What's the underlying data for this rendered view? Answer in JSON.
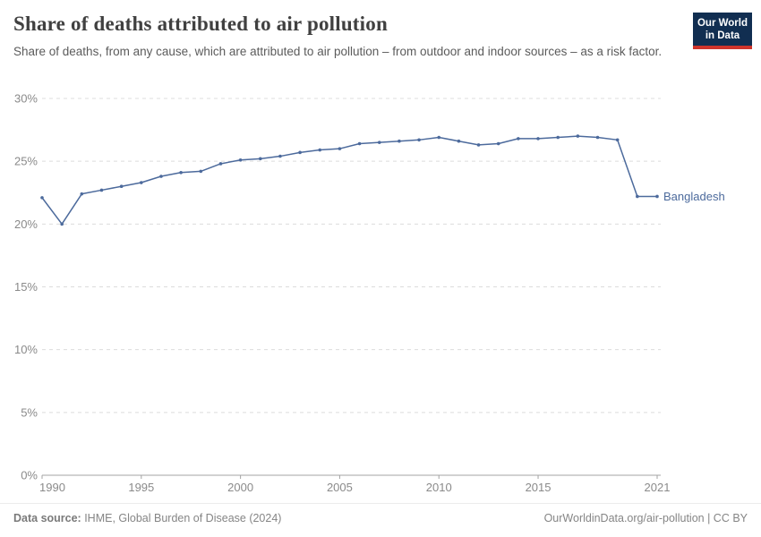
{
  "header": {
    "logo": {
      "line1": "Our World",
      "line2": "in Data"
    }
  },
  "chart_data": {
    "type": "line",
    "title": "Share of deaths attributed to air pollution",
    "subtitle": "Share of deaths, from any cause, which are attributed to air pollution – from outdoor and indoor sources – as a risk factor.",
    "xlabel": "",
    "ylabel": "",
    "xlim": [
      1990,
      2021
    ],
    "ylim": [
      0,
      30
    ],
    "x_ticks": [
      1990,
      1995,
      2000,
      2005,
      2010,
      2015,
      2021
    ],
    "y_ticks": [
      0,
      5,
      10,
      15,
      20,
      25,
      30
    ],
    "y_tick_suffix": "%",
    "grid": "horizontal-dashed",
    "legend_position": "end-of-line-label",
    "series": [
      {
        "name": "Bangladesh",
        "color": "#4c6a9c",
        "x": [
          1990,
          1991,
          1992,
          1993,
          1994,
          1995,
          1996,
          1997,
          1998,
          1999,
          2000,
          2001,
          2002,
          2003,
          2004,
          2005,
          2006,
          2007,
          2008,
          2009,
          2010,
          2011,
          2012,
          2013,
          2014,
          2015,
          2016,
          2017,
          2018,
          2019,
          2020,
          2021
        ],
        "values": [
          22.1,
          20.0,
          22.4,
          22.7,
          23.0,
          23.3,
          23.8,
          24.1,
          24.2,
          24.8,
          25.1,
          25.2,
          25.4,
          25.7,
          25.9,
          26.0,
          26.4,
          26.5,
          26.6,
          26.7,
          26.9,
          26.6,
          26.3,
          26.4,
          26.8,
          26.8,
          26.9,
          27.0,
          26.9,
          26.7,
          22.2,
          22.2
        ]
      }
    ],
    "axis_color": "#a3a3a3",
    "grid_color": "#dcdcdc",
    "tick_label_color": "#8a8a8a"
  },
  "footer": {
    "source_label": "Data source:",
    "source_text": " IHME, Global Burden of Disease (2024)",
    "link": "OurWorldinData.org/air-pollution | CC BY"
  }
}
